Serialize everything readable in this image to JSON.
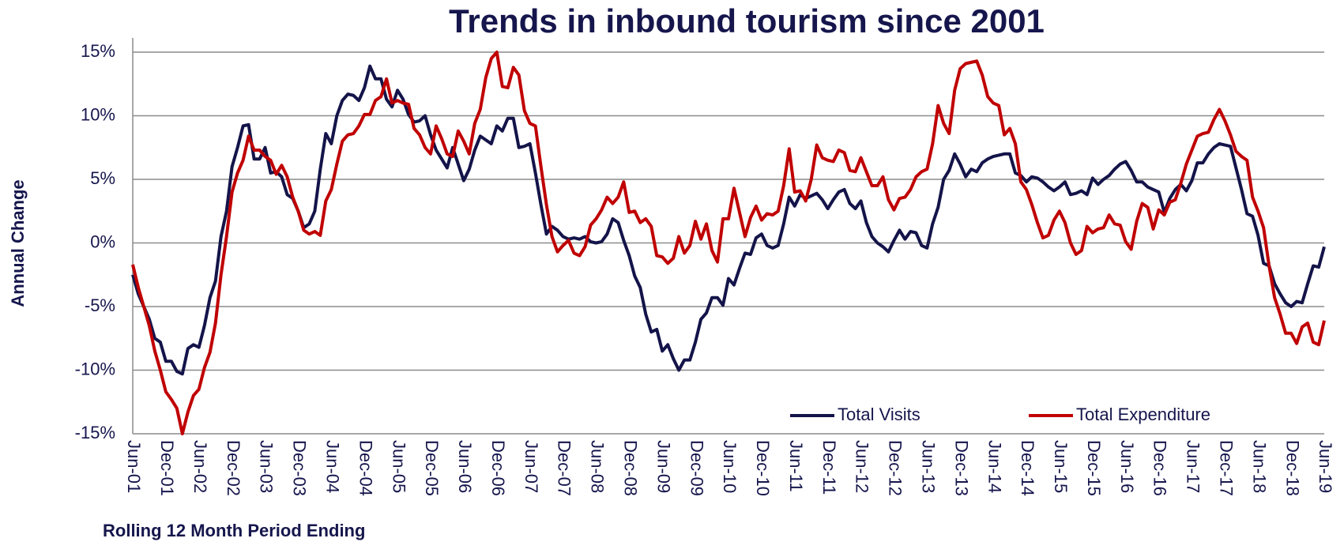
{
  "chart_data": {
    "type": "line",
    "title": "Trends in inbound tourism since 2001",
    "y_label": "Annual Change",
    "x_label": "Rolling 12 Month Period Ending",
    "categories": [
      "Jun-01",
      null,
      null,
      null,
      null,
      null,
      "Dec-01",
      null,
      null,
      null,
      null,
      null,
      "Jun-02",
      null,
      null,
      null,
      null,
      null,
      "Dec-02",
      null,
      null,
      null,
      null,
      null,
      "Jun-03",
      null,
      null,
      null,
      null,
      null,
      "Dec-03",
      null,
      null,
      null,
      null,
      null,
      "Jun-04",
      null,
      null,
      null,
      null,
      null,
      "Dec-04",
      null,
      null,
      null,
      null,
      null,
      "Jun-05",
      null,
      null,
      null,
      null,
      null,
      "Dec-05",
      null,
      null,
      null,
      null,
      null,
      "Jun-06",
      null,
      null,
      null,
      null,
      null,
      "Dec-06",
      null,
      null,
      null,
      null,
      null,
      "Jun-07",
      null,
      null,
      null,
      null,
      null,
      "Dec-07",
      null,
      null,
      null,
      null,
      null,
      "Jun-08",
      null,
      null,
      null,
      null,
      null,
      "Dec-08",
      null,
      null,
      null,
      null,
      null,
      "Jun-09",
      null,
      null,
      null,
      null,
      null,
      "Dec-09",
      null,
      null,
      null,
      null,
      null,
      "Jun-10",
      null,
      null,
      null,
      null,
      null,
      "Dec-10",
      null,
      null,
      null,
      null,
      null,
      "Jun-11",
      null,
      null,
      null,
      null,
      null,
      "Dec-11",
      null,
      null,
      null,
      null,
      null,
      "Jun-12",
      null,
      null,
      null,
      null,
      null,
      "Dec-12",
      null,
      null,
      null,
      null,
      null,
      "Jun-13",
      null,
      null,
      null,
      null,
      null,
      "Dec-13",
      null,
      null,
      null,
      null,
      null,
      "Jun-14",
      null,
      null,
      null,
      null,
      null,
      "Dec-14",
      null,
      null,
      null,
      null,
      null,
      "Jun-15",
      null,
      null,
      null,
      null,
      null,
      "Dec-15",
      null,
      null,
      null,
      null,
      null,
      "Jun-16",
      null,
      null,
      null,
      null,
      null,
      "Dec-16",
      null,
      null,
      null,
      null,
      null,
      "Jun-17",
      null,
      null,
      null,
      null,
      null,
      "Dec-17",
      null,
      null,
      null,
      null,
      null,
      "Jun-18",
      null,
      null,
      null,
      null,
      null,
      "Dec-18",
      null,
      null,
      null,
      null,
      null,
      "Jun-19"
    ],
    "series": [
      {
        "name": "Total Visits",
        "color": "#14144a",
        "values": [
          -2.5,
          -4,
          -5,
          -6,
          -7.5,
          -7.8,
          -9.3,
          -9.3,
          -10.1,
          -10.3,
          -8.3,
          -8,
          -8.2,
          -6.5,
          -4.3,
          -3,
          0.5,
          2.5,
          6,
          7.5,
          9.2,
          9.3,
          6.6,
          6.6,
          7.5,
          5.5,
          5.6,
          5.2,
          3.8,
          3.5,
          2.5,
          1.2,
          1.5,
          2.5,
          5.8,
          8.6,
          7.8,
          10,
          11.2,
          11.7,
          11.6,
          11.2,
          12.2,
          13.9,
          12.9,
          12.9,
          11.3,
          10.7,
          12,
          11.3,
          10.1,
          9.5,
          9.6,
          10,
          8.5,
          7.3,
          6.6,
          5.9,
          7.5,
          6.2,
          4.9,
          5.8,
          7.3,
          8.4,
          8.1,
          7.8,
          9.2,
          8.8,
          9.8,
          9.8,
          7.5,
          7.6,
          7.8,
          5.5,
          3,
          0.7,
          1.3,
          1,
          0.5,
          0.3,
          0.4,
          0.3,
          0.5,
          0.1,
          0,
          0.1,
          0.7,
          1.9,
          1.6,
          0.2,
          -1,
          -2.6,
          -3.5,
          -5.6,
          -7,
          -6.8,
          -8.5,
          -8,
          -9.1,
          -10,
          -9.2,
          -9.2,
          -7.8,
          -6,
          -5.5,
          -4.3,
          -4.3,
          -4.9,
          -2.8,
          -3.3,
          -2,
          -0.8,
          -0.9,
          0.4,
          0.7,
          -0.2,
          -0.4,
          -0.2,
          1.5,
          3.6,
          2.9,
          3.8,
          3.5,
          3.7,
          3.9,
          3.4,
          2.7,
          3.4,
          4,
          4.2,
          3.1,
          2.7,
          3.3,
          1.6,
          0.5,
          0,
          -0.3,
          -0.7,
          0.2,
          1,
          0.3,
          0.9,
          0.8,
          -0.2,
          -0.4,
          1.5,
          2.8,
          5,
          5.7,
          7,
          6.2,
          5.2,
          5.8,
          5.6,
          6.3,
          6.6,
          6.8,
          6.9,
          7,
          7,
          5.5,
          5.3,
          4.8,
          5.2,
          5.1,
          4.8,
          4.4,
          4.1,
          4.4,
          4.8,
          3.8,
          3.9,
          4.1,
          3.8,
          5.1,
          4.6,
          5,
          5.3,
          5.8,
          6.2,
          6.4,
          5.7,
          4.8,
          4.8,
          4.4,
          4.2,
          4,
          2.4,
          3.5,
          4.2,
          4.6,
          4.1,
          4.9,
          6.3,
          6.3,
          7,
          7.5,
          7.8,
          7.7,
          7.6,
          5.9,
          4.2,
          2.3,
          2.1,
          0.6,
          -1.6,
          -1.8,
          -3.2,
          -4,
          -4.7,
          -5,
          -4.6,
          -4.7,
          -3.2,
          -1.8,
          -1.9,
          -0.3
        ]
      },
      {
        "name": "Total Expenditure",
        "color": "#c00000",
        "values": [
          -1.7,
          -3.5,
          -5,
          -6.5,
          -8.5,
          -10,
          -11.7,
          -12.3,
          -13,
          -15,
          -13.3,
          -12,
          -11.5,
          -9.8,
          -8.6,
          -6.3,
          -2.5,
          0.5,
          4,
          5.5,
          6.5,
          8.4,
          7.3,
          7.3,
          6.8,
          6.5,
          5.4,
          6.1,
          5.2,
          3.6,
          2.5,
          1,
          0.7,
          0.9,
          0.6,
          3.3,
          4.2,
          6.2,
          8,
          8.5,
          8.6,
          9.2,
          10.1,
          10.1,
          11.2,
          11.5,
          12.9,
          11,
          11.2,
          11,
          10.9,
          9,
          8.5,
          7.5,
          7,
          9.2,
          8.2,
          7,
          6.8,
          8.8,
          8,
          7,
          9.4,
          10.5,
          13,
          14.5,
          15,
          12.3,
          12.2,
          13.8,
          13.2,
          10.4,
          9.4,
          9.2,
          6,
          3,
          0.5,
          -0.7,
          -0.2,
          0.2,
          -0.8,
          -1,
          -0.3,
          1.4,
          1.9,
          2.6,
          3.6,
          3.1,
          3.6,
          4.8,
          2.4,
          2.5,
          1.6,
          1.9,
          1.3,
          -1,
          -1.1,
          -1.6,
          -1.2,
          0.5,
          -0.8,
          -0.2,
          1.7,
          0.3,
          1.5,
          -0.6,
          -1.5,
          1.9,
          1.9,
          4.3,
          2.4,
          0.5,
          2,
          2.9,
          1.8,
          2.3,
          2.2,
          2.5,
          4.5,
          7.4,
          4,
          4.1,
          3.3,
          5,
          7.7,
          6.7,
          6.5,
          6.4,
          7.3,
          7.1,
          5.7,
          5.6,
          6.7,
          5.6,
          4.5,
          4.5,
          5.2,
          3.4,
          2.6,
          3.5,
          3.6,
          4.2,
          5.2,
          5.6,
          5.8,
          7.8,
          10.8,
          9.4,
          8.6,
          12,
          13.7,
          14.1,
          14.2,
          14.3,
          13.2,
          11.5,
          11,
          10.8,
          8.5,
          9,
          7.8,
          4.8,
          4.2,
          3,
          1.6,
          0.4,
          0.6,
          1.8,
          2.5,
          1.6,
          0,
          -0.9,
          -0.6,
          1.3,
          0.8,
          1.1,
          1.2,
          2.2,
          1.5,
          1.4,
          0.1,
          -0.5,
          1.7,
          3.1,
          2.8,
          1.1,
          2.6,
          2.2,
          3.2,
          3.4,
          4.7,
          6.2,
          7.3,
          8.4,
          8.6,
          8.7,
          9.7,
          10.5,
          9.6,
          8.5,
          7.2,
          6.8,
          6.5,
          3.6,
          2.5,
          1.2,
          -1.8,
          -4.3,
          -5.6,
          -7.1,
          -7.1,
          -7.9,
          -6.6,
          -6.3,
          -7.8,
          -8,
          -6.1
        ]
      }
    ],
    "ylim": [
      -15,
      15
    ],
    "yticks": [
      {
        "value": -15,
        "label": "-15%"
      },
      {
        "value": -10,
        "label": "-10%"
      },
      {
        "value": -5,
        "label": "-5%"
      },
      {
        "value": 0,
        "label": "0%"
      },
      {
        "value": 5,
        "label": "5%"
      },
      {
        "value": 10,
        "label": "10%"
      },
      {
        "value": 15,
        "label": "15%"
      }
    ],
    "grid": true,
    "legend": "lower right"
  }
}
